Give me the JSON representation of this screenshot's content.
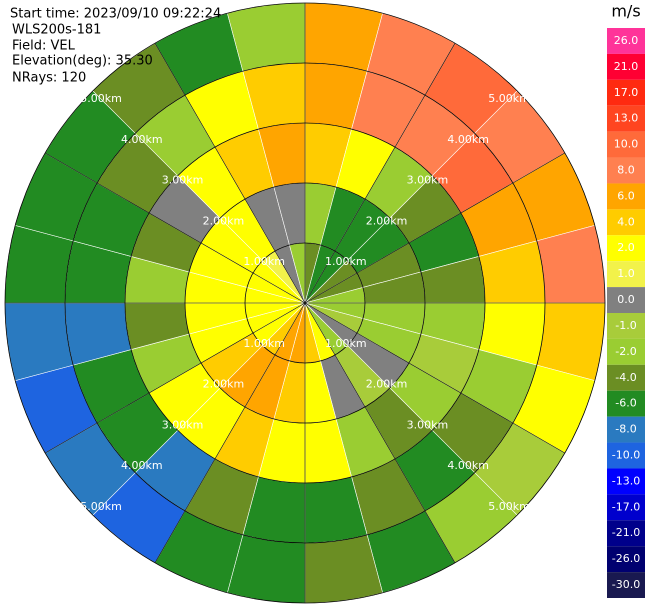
{
  "chart_data": {
    "type": "ppi",
    "header": [
      "Start time: 2023/09/10 09:22:24",
      "WLS200s-181",
      "Field: VEL",
      "Elevation(deg): 35.30",
      "NRays: 120"
    ],
    "range_rings": [
      {
        "value": 1,
        "label": "1.00km"
      },
      {
        "value": 2,
        "label": "2.00km"
      },
      {
        "value": 3,
        "label": "3.00km"
      },
      {
        "value": 4,
        "label": "4.00km"
      },
      {
        "value": 5,
        "label": "5.00km"
      }
    ],
    "colorbar": {
      "label": "m/s",
      "ticks": [
        {
          "value": 26,
          "label": "26.0"
        },
        {
          "value": 21,
          "label": "21.0"
        },
        {
          "value": 17,
          "label": "17.0"
        },
        {
          "value": 13,
          "label": "13.0"
        },
        {
          "value": 10,
          "label": "10.0"
        },
        {
          "value": 8,
          "label": "8.0"
        },
        {
          "value": 6,
          "label": "6.0"
        },
        {
          "value": 4,
          "label": "4.0"
        },
        {
          "value": 2,
          "label": "2.0"
        },
        {
          "value": 1,
          "label": "1.0"
        },
        {
          "value": 0,
          "label": "0.0"
        },
        {
          "value": -1,
          "label": "-1.0"
        },
        {
          "value": -2,
          "label": "-2.0"
        },
        {
          "value": -4,
          "label": "-4.0"
        },
        {
          "value": -6,
          "label": "-6.0"
        },
        {
          "value": -8,
          "label": "-8.0"
        },
        {
          "value": -10,
          "label": "-10.0"
        },
        {
          "value": -13,
          "label": "-13.0"
        },
        {
          "value": -17,
          "label": "-17.0"
        },
        {
          "value": -21,
          "label": "-21.0"
        },
        {
          "value": -26,
          "label": "-26.0"
        },
        {
          "value": -30,
          "label": "-30.0"
        }
      ],
      "colors": [
        "#ff3399",
        "#ff0033",
        "#ff2a10",
        "#ff4520",
        "#ff6a3a",
        "#ff8050",
        "#ffa500",
        "#ffcc00",
        "#ffff00",
        "#f2f24a",
        "#808080",
        "#a8cc3a",
        "#9acd32",
        "#6b8e23",
        "#228b22",
        "#2a7ac0",
        "#1e64e0",
        "#0000ff",
        "#0000cd",
        "#00008b",
        "#000070",
        "#191950"
      ]
    },
    "field": [
      [
        -4,
        -6,
        -6,
        -4,
        -4,
        -2,
        -2,
        -1,
        0,
        -2,
        2,
        4,
        6,
        6,
        4,
        2,
        2,
        2,
        2,
        2,
        2,
        1,
        0,
        -2
      ],
      [
        -2,
        -6,
        -6,
        -6,
        -4,
        -4,
        -2,
        -2,
        0,
        -1,
        0,
        2,
        4,
        6,
        6,
        4,
        2,
        2,
        2,
        2,
        2,
        2,
        0,
        0
      ],
      [
        4,
        2,
        -2,
        -4,
        -6,
        -4,
        -2,
        -1,
        -2,
        -4,
        -2,
        2,
        2,
        4,
        2,
        2,
        -2,
        -4,
        -2,
        -4,
        0,
        2,
        4,
        6
      ],
      [
        6,
        8,
        8,
        10,
        6,
        4,
        2,
        -2,
        -4,
        -6,
        -4,
        -6,
        -6,
        -4,
        -8,
        -6,
        -6,
        -8,
        -6,
        -6,
        -4,
        -2,
        2,
        4
      ],
      [
        6,
        8,
        10,
        8,
        6,
        8,
        4,
        2,
        -1,
        -2,
        -6,
        -4,
        -6,
        -6,
        -10,
        -8,
        -10,
        -8,
        -6,
        -6,
        -6,
        -4,
        -6,
        -2
      ]
    ]
  }
}
